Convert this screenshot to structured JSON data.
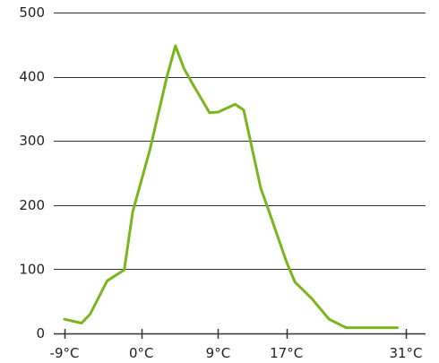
{
  "chart_data": {
    "type": "line",
    "title": "",
    "xlabel": "",
    "ylabel": "",
    "ylim": [
      0,
      500
    ],
    "xlim": [
      -9,
      31
    ],
    "grid": "horizontal",
    "legend": "none",
    "y_ticks": [
      0,
      100,
      200,
      300,
      400,
      500
    ],
    "x_ticks": [
      -9,
      0,
      9,
      17,
      31
    ],
    "y_tick_labels": [
      "0",
      "100",
      "200",
      "300",
      "400",
      "500"
    ],
    "x_tick_labels": [
      "-9°C",
      "0°C",
      "9°C",
      "17°C",
      "31°C"
    ],
    "series": [
      {
        "color": "#7ab51d",
        "x": [
          -9,
          -7,
          -6,
          -4,
          -2,
          -1,
          1,
          3,
          4,
          5,
          6,
          8,
          9,
          11,
          12,
          14,
          15,
          17,
          18,
          20,
          22,
          24,
          26,
          30
        ],
        "y": [
          22,
          16,
          30,
          82,
          99,
          190,
          286,
          400,
          448,
          413,
          389,
          344,
          345,
          357,
          348,
          226,
          189,
          112,
          80,
          54,
          22,
          9,
          9,
          9
        ]
      }
    ]
  },
  "colors": {
    "line": "#7ab51d",
    "grid": "#333333",
    "text": "#222222"
  }
}
